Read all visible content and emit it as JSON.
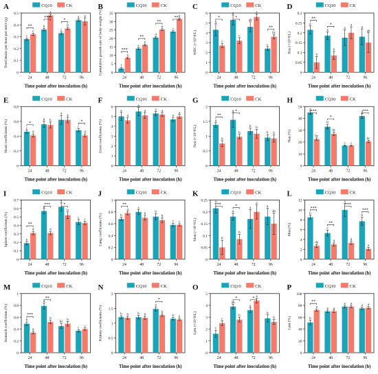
{
  "figure": {
    "xlabel": "Time point after inoculation (h)",
    "legend": [
      "CQ10",
      "CK"
    ],
    "colors": {
      "CQ10": "#1ba3b8",
      "CK": "#f47a6c"
    }
  },
  "chart_data": [
    {
      "panel": "A",
      "type": "bar",
      "ylabel": "Feed intake per hour per mice (g)",
      "ylim": [
        0,
        0.5
      ],
      "yticks": [
        0.0,
        0.1,
        0.2,
        0.3,
        0.4,
        0.5
      ],
      "categories": [
        "24",
        "48",
        "72",
        "96"
      ],
      "series": [
        {
          "name": "CQ10",
          "values": [
            0.28,
            0.36,
            0.33,
            0.44
          ],
          "errors": [
            0.01,
            0.01,
            0.01,
            0.01
          ],
          "letters": [
            "c",
            "b",
            "c",
            "a"
          ]
        },
        {
          "name": "CK",
          "values": [
            0.32,
            0.48,
            0.37,
            0.43
          ],
          "errors": [
            0.01,
            0.01,
            0.01,
            0.03
          ],
          "letters": [
            "c",
            "a",
            "b",
            "a"
          ]
        }
      ],
      "sig": [
        "**",
        "***",
        "*",
        ""
      ]
    },
    {
      "panel": "B",
      "type": "bar",
      "ylabel": "Cumulative growth rate of body weight (%)",
      "ylim": [
        0,
        35
      ],
      "yticks": [
        0,
        5,
        10,
        15,
        20,
        25,
        30,
        35
      ],
      "categories": [
        "24",
        "48",
        "72",
        "96"
      ],
      "series": [
        {
          "name": "CQ10",
          "values": [
            2.2,
            14,
            20.5,
            24
          ],
          "errors": [
            0.5,
            0.5,
            0.5,
            0.5
          ],
          "letters": [
            "f",
            "e",
            "d",
            "c"
          ]
        },
        {
          "name": "CK",
          "values": [
            8.5,
            16.2,
            25.2,
            31.5
          ],
          "errors": [
            0.5,
            0.5,
            0.5,
            0.6
          ],
          "letters": [
            "e",
            "e",
            "b",
            "a"
          ]
        }
      ],
      "sig": [
        "***",
        "**",
        "**",
        "**"
      ]
    },
    {
      "panel": "C",
      "type": "bar",
      "ylabel": "WBC (×10^9/L)",
      "ylim": [
        0,
        6
      ],
      "yticks": [
        0,
        1,
        2,
        3,
        4,
        5,
        6
      ],
      "categories": [
        "24",
        "48",
        "72",
        "96"
      ],
      "series": [
        {
          "name": "CQ10",
          "values": [
            4.3,
            5.3,
            4.6,
            2.4
          ],
          "errors": [
            0.6,
            0.5,
            0.5,
            0.2
          ],
          "letters": [
            "b",
            "a",
            "ab",
            "c"
          ]
        },
        {
          "name": "CK",
          "values": [
            2.7,
            3.2,
            5.6,
            3.6
          ],
          "errors": [
            0.2,
            0.3,
            0.3,
            0.2
          ],
          "letters": [
            "c",
            "c",
            "a",
            "bc"
          ]
        }
      ],
      "sig": [
        "*",
        "*",
        "",
        "**"
      ]
    },
    {
      "panel": "D",
      "type": "bar",
      "ylabel": "Bas (×10^9/L)",
      "ylim": [
        0,
        0.3
      ],
      "yticks": [
        0.0,
        0.05,
        0.1,
        0.15,
        0.2,
        0.25,
        0.3
      ],
      "categories": [
        "24",
        "48",
        "72",
        "96"
      ],
      "series": [
        {
          "name": "CQ10",
          "values": [
            0.215,
            0.185,
            0.175,
            0.18
          ],
          "errors": [
            0.02,
            0.02,
            0.04,
            0.04
          ],
          "letters": [
            "a",
            "a",
            "a",
            "a"
          ]
        },
        {
          "name": "CK",
          "values": [
            0.05,
            0.085,
            0.2,
            0.15
          ],
          "errors": [
            0.03,
            0.02,
            0.03,
            0.05
          ],
          "letters": [
            "b",
            "b",
            "a",
            "ab"
          ]
        }
      ],
      "sig": [
        "**",
        "*",
        "",
        ""
      ]
    },
    {
      "panel": "E",
      "type": "bar",
      "ylabel": "Heart coefficients (%)",
      "ylim": [
        0,
        0.8
      ],
      "yticks": [
        0.0,
        0.2,
        0.4,
        0.6,
        0.8
      ],
      "categories": [
        "24",
        "48",
        "72",
        "96"
      ],
      "series": [
        {
          "name": "CQ10",
          "values": [
            0.46,
            0.56,
            0.62,
            0.48
          ],
          "errors": [
            0.02,
            0.04,
            0.06,
            0.02
          ],
          "letters": [
            "c",
            "b",
            "a",
            "c"
          ]
        },
        {
          "name": "CK",
          "values": [
            0.41,
            0.55,
            0.62,
            0.41
          ],
          "errors": [
            0.02,
            0.04,
            0.04,
            0.02
          ],
          "letters": [
            "d",
            "b",
            "a",
            "d"
          ]
        }
      ],
      "sig": [
        "*",
        "",
        "",
        "*"
      ]
    },
    {
      "panel": "F",
      "type": "bar",
      "ylabel": "Liver coefficients (%)",
      "ylim": [
        0,
        6
      ],
      "yticks": [
        0,
        1,
        2,
        3,
        4,
        5,
        6
      ],
      "categories": [
        "24",
        "48",
        "72",
        "96"
      ],
      "series": [
        {
          "name": "CQ10",
          "values": [
            5.0,
            5.5,
            5.3,
            4.7
          ],
          "errors": [
            0.4,
            0.4,
            0.2,
            0.2
          ],
          "letters": [
            "a",
            "a",
            "a",
            "a"
          ]
        },
        {
          "name": "CK",
          "values": [
            4.6,
            5.1,
            5.2,
            5.0
          ],
          "errors": [
            0.3,
            0.3,
            0.2,
            0.2
          ],
          "letters": [
            "a",
            "a",
            "a",
            "a"
          ]
        }
      ],
      "sig": [
        "",
        "",
        "",
        ""
      ]
    },
    {
      "panel": "G",
      "type": "bar",
      "ylabel": "Neu (×10^9/L)",
      "ylim": [
        0,
        2.0
      ],
      "yticks": [
        0.0,
        0.5,
        1.0,
        1.5,
        2.0
      ],
      "categories": [
        "24",
        "48",
        "72",
        "96"
      ],
      "series": [
        {
          "name": "CQ10",
          "values": [
            1.38,
            1.55,
            1.17,
            0.95
          ],
          "errors": [
            0.08,
            0.25,
            0.1,
            0.1
          ],
          "letters": [
            "a",
            "a",
            "b",
            "b"
          ]
        },
        {
          "name": "CK",
          "values": [
            0.75,
            0.98,
            1.08,
            0.92
          ],
          "errors": [
            0.1,
            0.08,
            0.15,
            0.12
          ],
          "letters": [
            "b",
            "b",
            "b",
            "b"
          ]
        }
      ],
      "sig": [
        "**",
        "*",
        "",
        ""
      ]
    },
    {
      "panel": "H",
      "type": "bar",
      "ylabel": "Neu (%)",
      "ylim": [
        0,
        50
      ],
      "yticks": [
        0,
        10,
        20,
        30,
        40,
        50
      ],
      "categories": [
        "24",
        "48",
        "72",
        "96"
      ],
      "series": [
        {
          "name": "CQ10",
          "values": [
            45,
            33,
            17,
            42
          ],
          "errors": [
            1.5,
            2,
            0.5,
            2
          ],
          "letters": [
            "a",
            "b",
            "c",
            "a"
          ]
        },
        {
          "name": "CK",
          "values": [
            22.5,
            27,
            17,
            20.5
          ],
          "errors": [
            1,
            1.5,
            0.5,
            1
          ],
          "letters": [
            "bc",
            "bc",
            "c",
            "bc"
          ]
        }
      ],
      "sig": [
        "***",
        "*",
        "",
        "***"
      ]
    },
    {
      "panel": "I",
      "type": "bar",
      "ylabel": "Spleen coefficients (%)",
      "ylim": [
        0,
        0.7
      ],
      "yticks": [
        0.0,
        0.1,
        0.2,
        0.3,
        0.4,
        0.5,
        0.6,
        0.7
      ],
      "categories": [
        "24",
        "48",
        "72",
        "96"
      ],
      "series": [
        {
          "name": "CQ10",
          "values": [
            0.19,
            0.57,
            0.62,
            0.44
          ],
          "errors": [
            0.02,
            0.03,
            0.05,
            0.03
          ],
          "letters": [
            "e",
            "a",
            "a",
            "c"
          ]
        },
        {
          "name": "CK",
          "values": [
            0.31,
            0.31,
            0.52,
            0.43
          ],
          "errors": [
            0.02,
            0.02,
            0.04,
            0.02
          ],
          "letters": [
            "d",
            "d",
            "b",
            "c"
          ]
        }
      ],
      "sig": [
        "**",
        "***",
        "*",
        ""
      ]
    },
    {
      "panel": "J",
      "type": "bar",
      "ylabel": "Lung coefficients (%)",
      "ylim": [
        0,
        1.0
      ],
      "yticks": [
        0.0,
        0.2,
        0.4,
        0.6,
        0.8,
        1.0
      ],
      "categories": [
        "24",
        "48",
        "72",
        "96"
      ],
      "series": [
        {
          "name": "CQ10",
          "values": [
            0.68,
            0.8,
            0.72,
            0.58
          ],
          "errors": [
            0.03,
            0.04,
            0.05,
            0.03
          ],
          "letters": [
            "b",
            "a",
            "b",
            "c"
          ]
        },
        {
          "name": "CK",
          "values": [
            0.78,
            0.7,
            0.66,
            0.58
          ],
          "errors": [
            0.03,
            0.04,
            0.04,
            0.02
          ],
          "letters": [
            "a",
            "b",
            "b",
            "c"
          ]
        }
      ],
      "sig": [
        "**",
        "",
        "",
        ""
      ]
    },
    {
      "panel": "K",
      "type": "bar",
      "ylabel": "Mon (×10^9/L)",
      "ylim": [
        0,
        0.25
      ],
      "yticks": [
        0.0,
        0.05,
        0.1,
        0.15,
        0.2,
        0.25
      ],
      "categories": [
        "24",
        "48",
        "72",
        "96"
      ],
      "series": [
        {
          "name": "CQ10",
          "values": [
            0.215,
            0.18,
            0.17,
            0.18
          ],
          "errors": [
            0.02,
            0.015,
            0.04,
            0.035
          ],
          "letters": [
            "a",
            "a",
            "a",
            "a"
          ]
        },
        {
          "name": "CK",
          "values": [
            0.05,
            0.085,
            0.2,
            0.15
          ],
          "errors": [
            0.03,
            0.02,
            0.03,
            0.045
          ],
          "letters": [
            "b",
            "b",
            "a",
            "ab"
          ]
        }
      ],
      "sig": [
        "**",
        "*",
        "",
        ""
      ]
    },
    {
      "panel": "L",
      "type": "bar",
      "ylabel": "Mon (%)",
      "ylim": [
        0,
        12
      ],
      "yticks": [
        0,
        2,
        4,
        6,
        8,
        10,
        12
      ],
      "categories": [
        "24",
        "48",
        "72",
        "96"
      ],
      "series": [
        {
          "name": "CQ10",
          "values": [
            8.5,
            5.3,
            10,
            7.7
          ],
          "errors": [
            0.4,
            0.6,
            1.3,
            0.8
          ],
          "letters": [
            "b",
            "c",
            "a",
            "b"
          ]
        },
        {
          "name": "CK",
          "values": [
            2.7,
            3.0,
            3.3,
            2.1
          ],
          "errors": [
            0.3,
            0.3,
            0.3,
            0.3
          ],
          "letters": [
            "de",
            "d",
            "d",
            "e"
          ]
        }
      ],
      "sig": [
        "***",
        "**",
        "***",
        "***"
      ]
    },
    {
      "panel": "M",
      "type": "bar",
      "ylabel": "Stomach coefficients (%)",
      "ylim": [
        0,
        1.0
      ],
      "yticks": [
        0.0,
        0.2,
        0.4,
        0.6,
        0.8,
        1.0
      ],
      "categories": [
        "24",
        "48",
        "72",
        "96"
      ],
      "series": [
        {
          "name": "CQ10",
          "values": [
            0.49,
            0.79,
            0.45,
            0.37
          ],
          "errors": [
            0.03,
            0.05,
            0.04,
            0.02
          ],
          "letters": [
            "b",
            "a",
            "bc",
            "c"
          ]
        },
        {
          "name": "CK",
          "values": [
            0.34,
            0.52,
            0.49,
            0.4
          ],
          "errors": [
            0.02,
            0.03,
            0.04,
            0.02
          ],
          "letters": [
            "d",
            "b",
            "b",
            "c"
          ]
        }
      ],
      "sig": [
        "***",
        "**",
        "",
        ""
      ]
    },
    {
      "panel": "N",
      "type": "bar",
      "ylabel": "Kidney coefficients (%)",
      "ylim": [
        0,
        2.0
      ],
      "yticks": [
        0.0,
        0.5,
        1.0,
        1.5,
        2.0
      ],
      "categories": [
        "24",
        "48",
        "72",
        "96"
      ],
      "series": [
        {
          "name": "CQ10",
          "values": [
            1.2,
            1.2,
            1.48,
            1.15
          ],
          "errors": [
            0.05,
            0.06,
            0.07,
            0.04
          ],
          "letters": [
            "b",
            "b",
            "a",
            "b"
          ]
        },
        {
          "name": "CK",
          "values": [
            1.18,
            1.18,
            1.27,
            1.12
          ],
          "errors": [
            0.05,
            0.05,
            0.04,
            0.03
          ],
          "letters": [
            "b",
            "b",
            "b",
            "b"
          ]
        }
      ],
      "sig": [
        "",
        "",
        "*",
        ""
      ]
    },
    {
      "panel": "O",
      "type": "bar",
      "ylabel": "Lym (×10^9/L)",
      "ylim": [
        0,
        5
      ],
      "yticks": [
        0,
        1,
        2,
        3,
        4,
        5
      ],
      "categories": [
        "24",
        "48",
        "72",
        "96"
      ],
      "series": [
        {
          "name": "CQ10",
          "values": [
            1.6,
            3.9,
            3.6,
            2.9
          ],
          "errors": [
            0.3,
            0.2,
            0.2,
            0.3
          ],
          "letters": [
            "c",
            "ab",
            "a",
            "b"
          ]
        },
        {
          "name": "CK",
          "values": [
            2.5,
            2.8,
            4.4,
            2.6
          ],
          "errors": [
            0.2,
            0.2,
            0.2,
            0.2
          ],
          "letters": [
            "c",
            "b",
            "a",
            "b"
          ]
        }
      ],
      "sig": [
        "",
        "*",
        "*",
        ""
      ]
    },
    {
      "panel": "P",
      "type": "bar",
      "ylabel": "Lym (%)",
      "ylim": [
        0,
        100
      ],
      "yticks": [
        0,
        20,
        40,
        60,
        80,
        100
      ],
      "categories": [
        "24",
        "48",
        "72",
        "96"
      ],
      "series": [
        {
          "name": "CQ10",
          "values": [
            51,
            70,
            78,
            75
          ],
          "errors": [
            4,
            2,
            2,
            2
          ],
          "letters": [
            "b",
            "a",
            "a",
            "a"
          ]
        },
        {
          "name": "CK",
          "values": [
            72,
            70,
            78,
            76
          ],
          "errors": [
            2,
            2,
            2,
            2
          ],
          "letters": [
            "a",
            "a",
            "a",
            "a"
          ]
        }
      ],
      "sig": [
        "**",
        "",
        "",
        ""
      ]
    }
  ]
}
